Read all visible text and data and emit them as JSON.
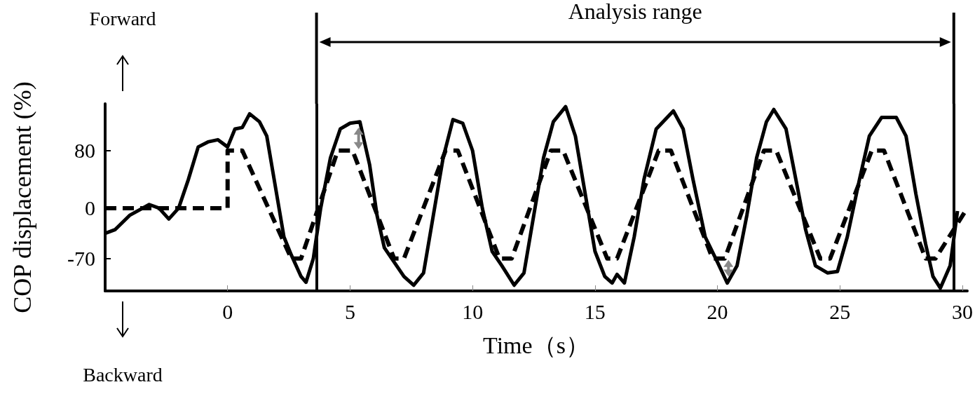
{
  "chart_data": {
    "type": "line",
    "xlabel": "Time（s）",
    "ylabel": "COP displacement (%)",
    "xlim": [
      -5,
      30.2
    ],
    "xticks": [
      0,
      5,
      10,
      15,
      20,
      25,
      30
    ],
    "ylim": [
      -115,
      145
    ],
    "yticks": [
      -70,
      0,
      80
    ],
    "grid": false,
    "marker": "none",
    "series": [
      {
        "color": "#000000",
        "line_style": "dashed",
        "x": [
          -5,
          0,
          0,
          0.6,
          2.6,
          3.0,
          4.5,
          5.1,
          6.8,
          7.2,
          8.9,
          9.4,
          11.1,
          11.6,
          13.2,
          13.7,
          15.5,
          15.9,
          17.6,
          18.1,
          19.8,
          20.3,
          21.9,
          22.4,
          24.2,
          24.6,
          26.3,
          26.8,
          28.5,
          28.9,
          30.2
        ],
        "values": [
          0,
          0,
          80,
          80,
          -70,
          -70,
          80,
          80,
          -70,
          -70,
          80,
          80,
          -70,
          -70,
          80,
          80,
          -70,
          -70,
          80,
          80,
          -70,
          -70,
          80,
          80,
          -70,
          -70,
          80,
          80,
          -70,
          -70,
          0
        ]
      },
      {
        "color": "#000000",
        "line_style": "solid",
        "x": [
          -5,
          -4.6,
          -4,
          -3.2,
          -2.8,
          -2.4,
          -2,
          -1.6,
          -1.2,
          -0.8,
          -0.4,
          0,
          0.3,
          0.6,
          0.9,
          1.3,
          1.6,
          2.0,
          2.3,
          2.6,
          3.0,
          3.2,
          3.5,
          3.8,
          4.2,
          4.6,
          5.0,
          5.4,
          5.8,
          6.1,
          6.4,
          6.8,
          7.2,
          7.6,
          8.0,
          8.4,
          8.8,
          9.2,
          9.6,
          10.0,
          10.4,
          10.8,
          11.2,
          11.7,
          12.1,
          12.5,
          12.9,
          13.3,
          13.8,
          14.2,
          14.6,
          15.0,
          15.4,
          15.7,
          15.9,
          16.2,
          16.6,
          17.0,
          17.5,
          18.2,
          18.6,
          19.0,
          19.5,
          20.0,
          20.4,
          20.8,
          21.2,
          21.6,
          22.0,
          22.3,
          22.8,
          23.2,
          23.6,
          24.0,
          24.5,
          24.9,
          25.3,
          25.8,
          26.2,
          26.7,
          27.3,
          27.7,
          28.1,
          28.5,
          28.8,
          29.1,
          29.5,
          29.8
        ],
        "values": [
          -35,
          -30,
          -10,
          5,
          0,
          -15,
          0,
          40,
          85,
          92,
          95,
          85,
          110,
          112,
          131,
          120,
          100,
          20,
          -40,
          -65,
          -95,
          -103,
          -70,
          0,
          70,
          110,
          118,
          120,
          60,
          -10,
          -55,
          -75,
          -95,
          -107,
          -90,
          -10,
          70,
          123,
          118,
          80,
          0,
          -60,
          -80,
          -107,
          -90,
          -10,
          70,
          120,
          141,
          100,
          20,
          -60,
          -95,
          -104,
          -92,
          -104,
          -40,
          40,
          110,
          135,
          110,
          40,
          -40,
          -75,
          -104,
          -80,
          -10,
          70,
          120,
          137,
          110,
          40,
          -30,
          -80,
          -90,
          -88,
          -40,
          40,
          100,
          126,
          126,
          100,
          20,
          -50,
          -95,
          -111,
          -80,
          -4
        ]
      }
    ],
    "ref_lines": [
      {
        "axis": "x",
        "value": 3.63,
        "color": "#000000"
      },
      {
        "axis": "x",
        "value": 29.65,
        "color": "#000000"
      }
    ],
    "annotations": [
      "Analysis range",
      "Forward",
      "Backward"
    ]
  }
}
